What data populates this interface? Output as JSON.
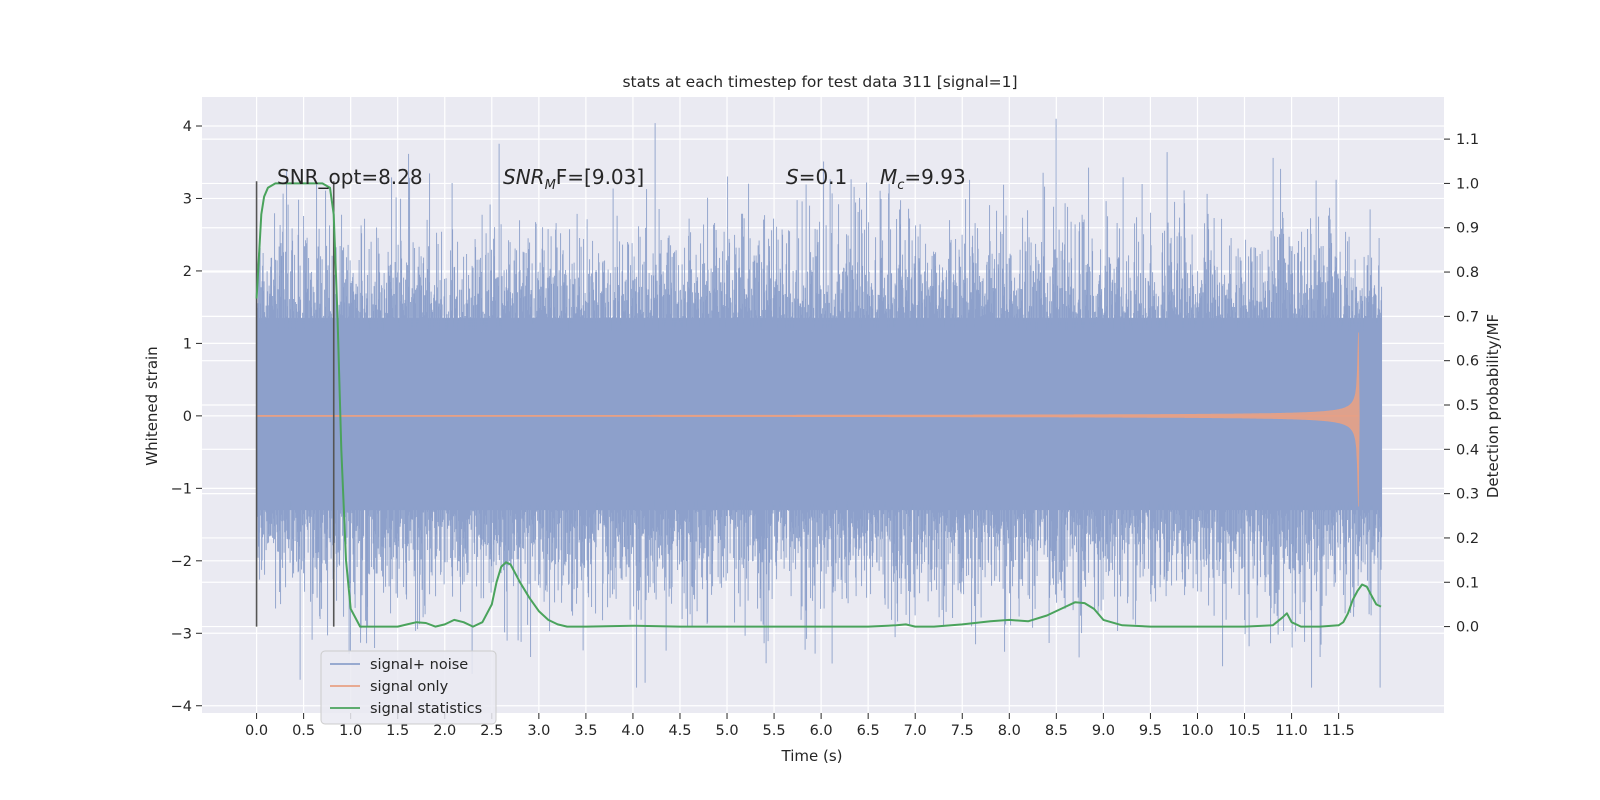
{
  "chart_data": {
    "type": "line",
    "title": "stats at each timestep for test data 311 [signal=1]",
    "xlabel": "Time (s)",
    "ylabel": "Whitened strain",
    "ylabel_right": "Detection probability/MF",
    "xlim": [
      -0.58,
      12.62
    ],
    "ylim": [
      -4.1,
      4.4
    ],
    "ylim_right": [
      -0.195,
      1.195
    ],
    "x_ticks": [
      0.0,
      0.5,
      1.0,
      1.5,
      2.0,
      2.5,
      3.0,
      3.5,
      4.0,
      4.5,
      5.0,
      5.5,
      6.0,
      6.5,
      7.0,
      7.5,
      8.0,
      8.5,
      9.0,
      9.5,
      10.0,
      10.5,
      11.0,
      11.5
    ],
    "x_tick_labels": [
      "0.0",
      "0.5",
      "1.0",
      "1.5",
      "2.0",
      "2.5",
      "3.0",
      "3.5",
      "4.0",
      "4.5",
      "5.0",
      "5.5",
      "6.0",
      "6.5",
      "7.0",
      "7.5",
      "8.0",
      "8.5",
      "9.0",
      "9.5",
      "10.0",
      "10.5",
      "11.0",
      "11.5"
    ],
    "y_ticks": [
      4,
      3,
      2,
      1,
      0,
      -1,
      -2,
      -3,
      -4
    ],
    "y_tick_labels": [
      "4",
      "3",
      "2",
      "1",
      "0",
      "−1",
      "−2",
      "−3",
      "−4"
    ],
    "y_ticks_right": [
      1.1,
      1.0,
      0.9,
      0.8,
      0.7,
      0.6,
      0.5,
      0.4,
      0.3,
      0.2,
      0.1,
      0.0
    ],
    "y_tick_labels_right": [
      "1.1",
      "1.0",
      "0.9",
      "0.8",
      "0.7",
      "0.6",
      "0.5",
      "0.4",
      "0.3",
      "0.2",
      "0.1",
      "0.0"
    ],
    "grid": true,
    "legend_position": "lower-left",
    "annotations": {
      "snr_opt": "SNR_opt=8.28",
      "snr_mf_main": "SNR",
      "snr_mf_sub": "M",
      "snr_mf_rest": "F=[9.03]",
      "s_main": "S",
      "s_rest": "=0.1",
      "mc_main": "M",
      "mc_sub": "c",
      "mc_rest": "=9.93"
    },
    "detection_window": [
      0.0,
      0.82
    ],
    "series": [
      {
        "name": "signal+ noise",
        "color": "#8da0cb",
        "axis": "left",
        "x_range": [
          0.0,
          11.96
        ],
        "core_band": [
          -1.3,
          1.35
        ],
        "max_value": 4.1,
        "min_value": -3.75
      },
      {
        "name": "signal only",
        "color": "#e7a185",
        "axis": "left",
        "x_range": [
          0.0,
          11.72
        ],
        "peak_amplitude_upper": 1.15,
        "peak_amplitude_lower": -1.25,
        "peak_time": 11.71
      },
      {
        "name": "signal statistics",
        "color": "#4aa35c",
        "axis": "right",
        "x": [
          0.0,
          0.05,
          0.08,
          0.12,
          0.2,
          0.3,
          0.45,
          0.6,
          0.7,
          0.78,
          0.82,
          0.86,
          0.9,
          0.95,
          1.0,
          1.1,
          1.3,
          1.5,
          1.6,
          1.7,
          1.8,
          1.9,
          2.0,
          2.1,
          2.2,
          2.3,
          2.4,
          2.5,
          2.55,
          2.6,
          2.65,
          2.7,
          2.75,
          2.8,
          2.9,
          3.0,
          3.1,
          3.2,
          3.3,
          3.5,
          4.0,
          4.5,
          5.0,
          5.5,
          6.0,
          6.5,
          6.8,
          6.9,
          7.0,
          7.2,
          7.5,
          7.8,
          8.0,
          8.2,
          8.4,
          8.6,
          8.7,
          8.8,
          8.9,
          9.0,
          9.2,
          9.5,
          10.0,
          10.5,
          10.8,
          10.9,
          10.95,
          11.0,
          11.1,
          11.3,
          11.5,
          11.55,
          11.6,
          11.65,
          11.7,
          11.75,
          11.8,
          11.85,
          11.9,
          11.95
        ],
        "values": [
          0.74,
          0.93,
          0.97,
          0.99,
          1.0,
          1.0,
          1.0,
          1.0,
          1.0,
          0.99,
          0.93,
          0.7,
          0.4,
          0.15,
          0.04,
          0.0,
          0.0,
          0.0,
          0.005,
          0.01,
          0.008,
          0.0,
          0.005,
          0.015,
          0.01,
          0.0,
          0.01,
          0.05,
          0.1,
          0.135,
          0.145,
          0.14,
          0.12,
          0.1,
          0.065,
          0.035,
          0.015,
          0.005,
          0.0,
          0.0,
          0.002,
          0.0,
          0.0,
          0.0,
          0.0,
          0.0,
          0.003,
          0.005,
          0.0,
          0.0,
          0.005,
          0.012,
          0.015,
          0.012,
          0.025,
          0.045,
          0.055,
          0.053,
          0.04,
          0.015,
          0.003,
          0.0,
          0.0,
          0.0,
          0.003,
          0.02,
          0.03,
          0.01,
          0.0,
          0.0,
          0.003,
          0.01,
          0.03,
          0.06,
          0.08,
          0.095,
          0.09,
          0.07,
          0.05,
          0.045
        ]
      }
    ]
  }
}
